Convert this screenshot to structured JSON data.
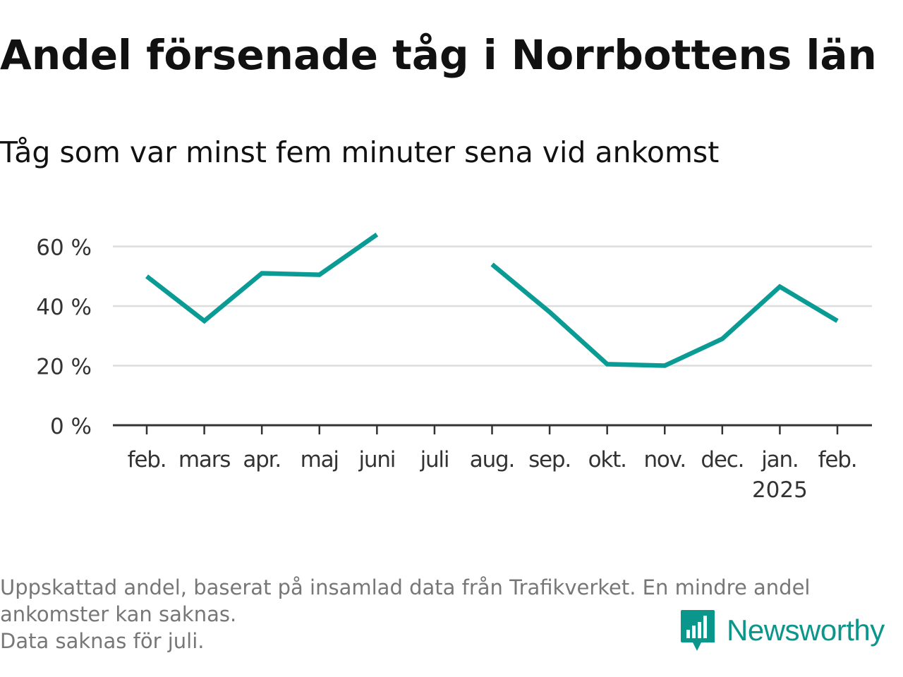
{
  "title": "Andel försenade tåg i Norrbottens län",
  "subtitle": "Tåg som var minst fem minuter sena vid ankomst",
  "colors": {
    "line": "#0a9c94",
    "grid": "#dddddd",
    "axis": "#333333",
    "brand": "#0b968c",
    "footnote": "#777777"
  },
  "chart_data": {
    "type": "line",
    "categories": [
      "feb.",
      "mars",
      "apr.",
      "maj",
      "juni",
      "juli",
      "aug.",
      "sep.",
      "okt.",
      "nov.",
      "dec.",
      "jan.",
      "feb."
    ],
    "category_sublabels": [
      "",
      "",
      "",
      "",
      "",
      "",
      "",
      "",
      "",
      "",
      "",
      "2025",
      ""
    ],
    "series": [
      {
        "values": [
          50,
          35,
          51,
          50.5,
          64,
          null,
          54,
          38,
          20.5,
          20,
          29,
          46.5,
          35
        ]
      }
    ],
    "yticks": [
      0,
      20,
      40,
      60
    ],
    "ytick_labels": [
      "0 %",
      "20 %",
      "40 %",
      "60 %"
    ],
    "ylim": [
      0,
      66
    ],
    "grid": true,
    "legend": "none"
  },
  "footnote": {
    "line1": "Uppskattad andel, baserat på insamlad data från Trafikverket. En mindre andel",
    "line2": "ankomster kan saknas.",
    "line3": "Data saknas för juli."
  },
  "brand": {
    "name": "Newsworthy",
    "icon": "newsworthy-logo-icon"
  }
}
